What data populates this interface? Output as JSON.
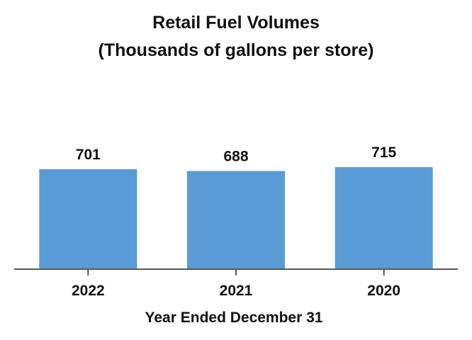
{
  "chart_data": {
    "type": "bar",
    "title": "Retail Fuel Volumes",
    "subtitle": "(Thousands of gallons per store)",
    "xlabel": "Year Ended December 31",
    "ylabel": "",
    "categories": [
      "2022",
      "2021",
      "2020"
    ],
    "values": [
      701,
      688,
      715
    ],
    "value_labels": [
      "701",
      "688",
      "715"
    ],
    "ylim": [
      0,
      715
    ],
    "grid": false,
    "legend": "none",
    "bar_color": "#5b9bd5",
    "axis_color": "#595959"
  }
}
